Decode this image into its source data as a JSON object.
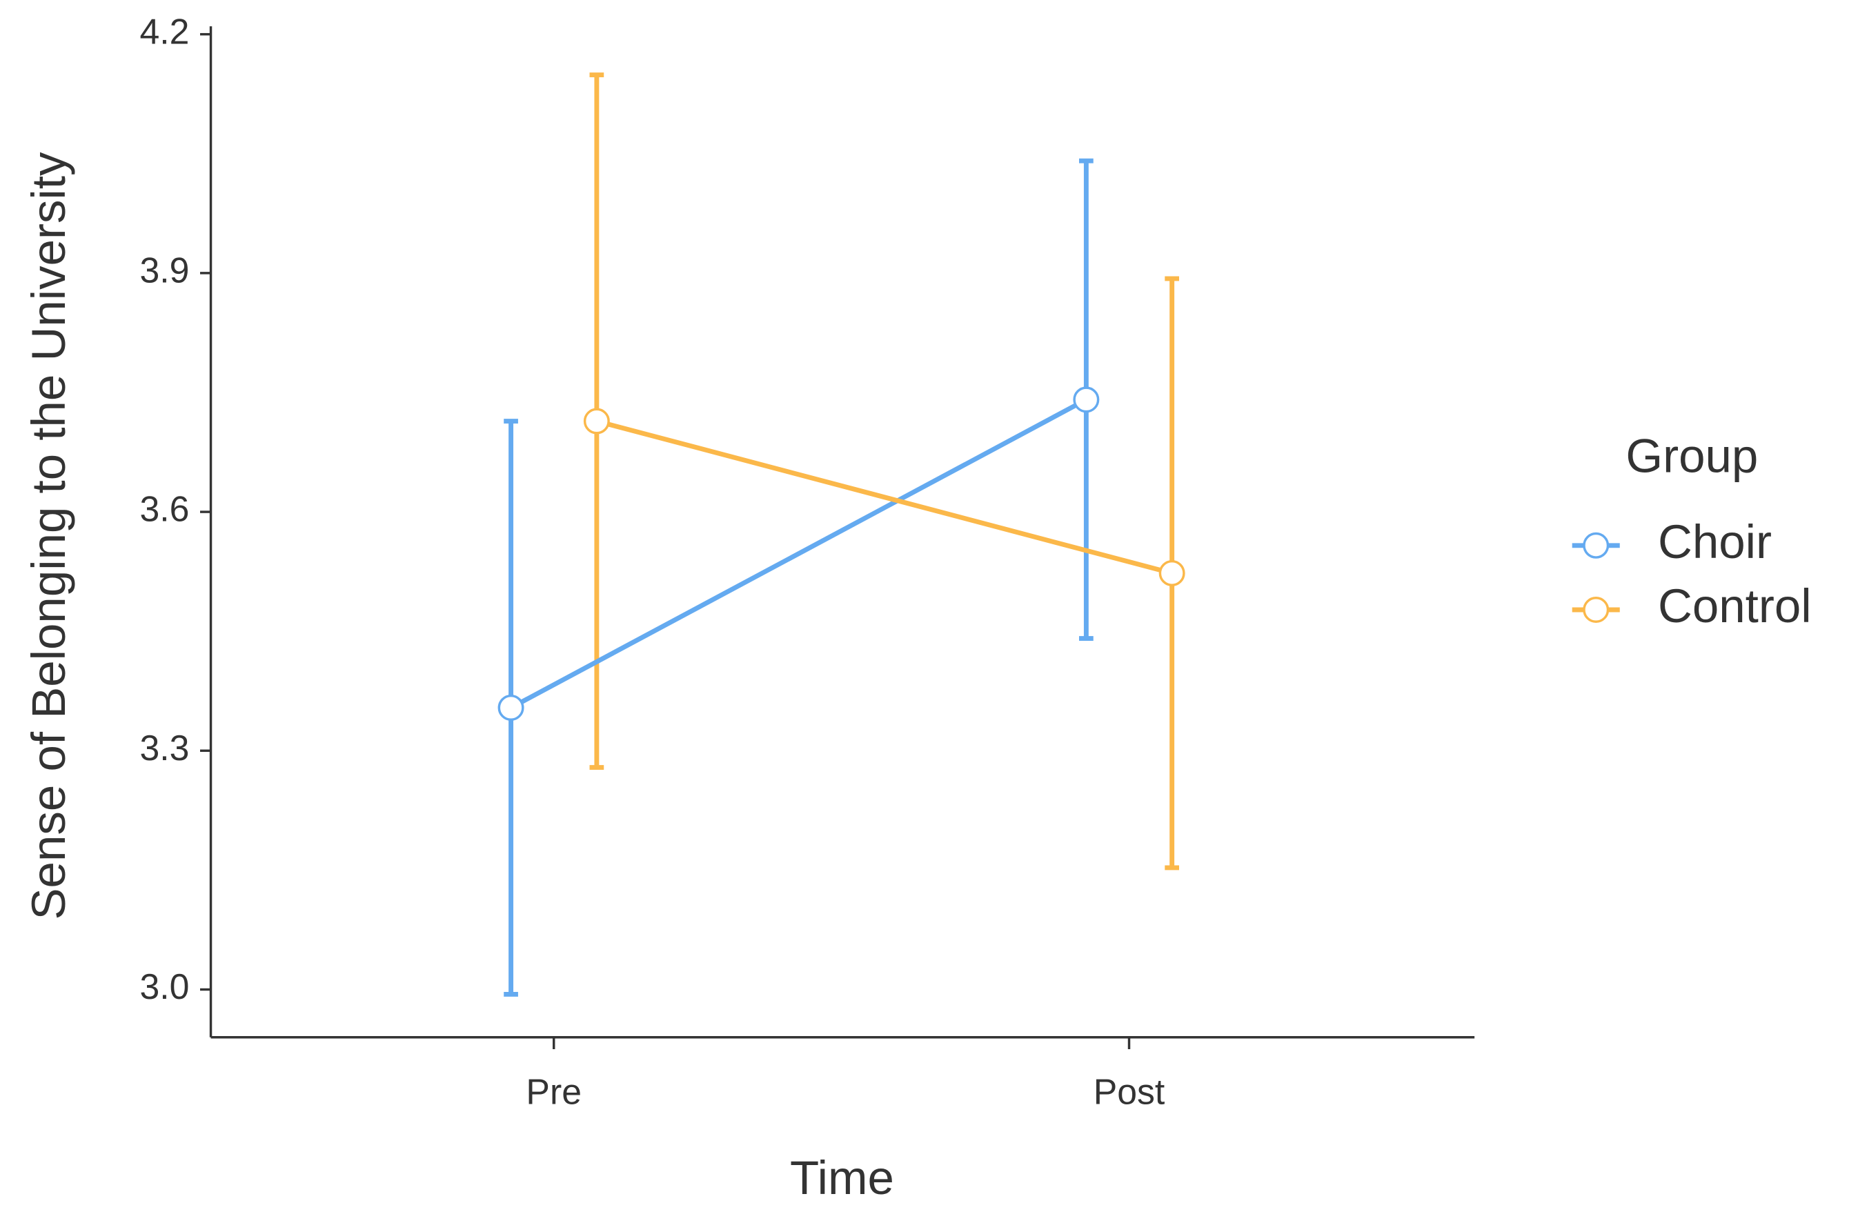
{
  "chart_data": {
    "type": "line",
    "x_label": "Time",
    "y_label": "Sense of Belonging to the University",
    "legend_title": "Group",
    "legend_position": "right",
    "categories": [
      "Pre",
      "Post"
    ],
    "series": [
      {
        "name": "Choir",
        "color": "#64aaf0",
        "values": [
          3.354,
          3.741
        ],
        "errors": [
          0.36,
          0.3
        ]
      },
      {
        "name": "Control",
        "color": "#fbb84a",
        "values": [
          3.714,
          3.523
        ],
        "errors": [
          0.435,
          0.37
        ]
      }
    ],
    "ylim": [
      2.94,
      4.21
    ],
    "yticks": [
      {
        "value": 3.0,
        "label": "3.0"
      },
      3.3,
      3.6,
      3.9,
      4.2
    ],
    "grid": false
  }
}
